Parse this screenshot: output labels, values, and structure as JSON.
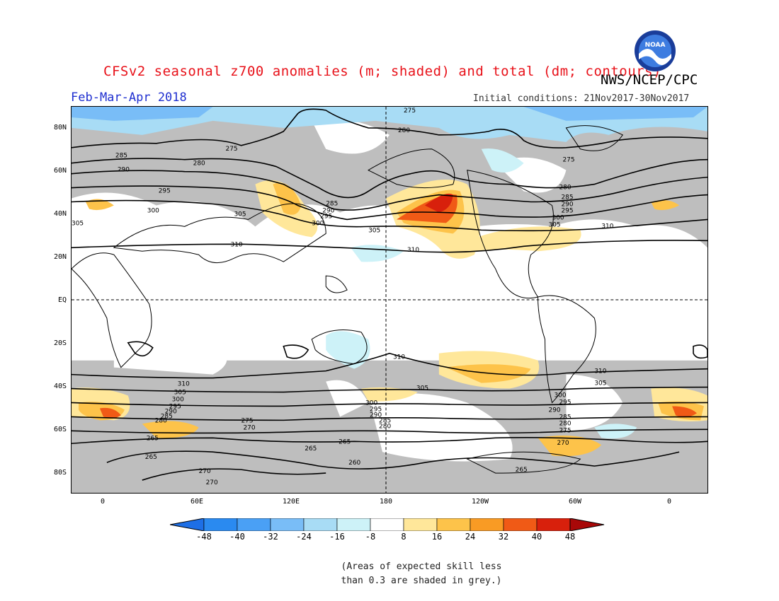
{
  "header": {
    "title": "CFSv2 seasonal z700 anomalies (m; shaded) and total (dm; contours)",
    "agency": "NWS/NCEP/CPC",
    "season": "Feb-Mar-Apr 2018",
    "initial_conditions": "Initial conditions: 21Nov2017-30Nov2017",
    "logo_text": "NOAA"
  },
  "map": {
    "latitude_labels": [
      "80N",
      "60N",
      "40N",
      "20N",
      "EQ",
      "20S",
      "40S",
      "60S",
      "80S"
    ],
    "longitude_labels": [
      "0",
      "60E",
      "120E",
      "180",
      "120W",
      "60W",
      "0"
    ],
    "contour_labels": [
      "275",
      "280",
      "285",
      "290",
      "295",
      "300",
      "305",
      "310",
      "265",
      "260",
      "270"
    ]
  },
  "colorbar": {
    "ticks": [
      "-48",
      "-40",
      "-32",
      "-24",
      "-16",
      "-8",
      "8",
      "16",
      "24",
      "32",
      "40",
      "48"
    ],
    "colors": [
      "#1e6fe6",
      "#2a8af0",
      "#4aa0f5",
      "#79bdf7",
      "#a8dcf5",
      "#cdf2f8",
      "#ffffff",
      "#ffe79a",
      "#fdc34a",
      "#f99b24",
      "#f05a16",
      "#d8200c",
      "#a80808"
    ]
  },
  "note": {
    "line1": "(Areas of expected skill less",
    "line2": "than 0.3 are shaded in grey.)"
  },
  "legend_colors": {
    "grey_low_skill": "#bebebe"
  }
}
